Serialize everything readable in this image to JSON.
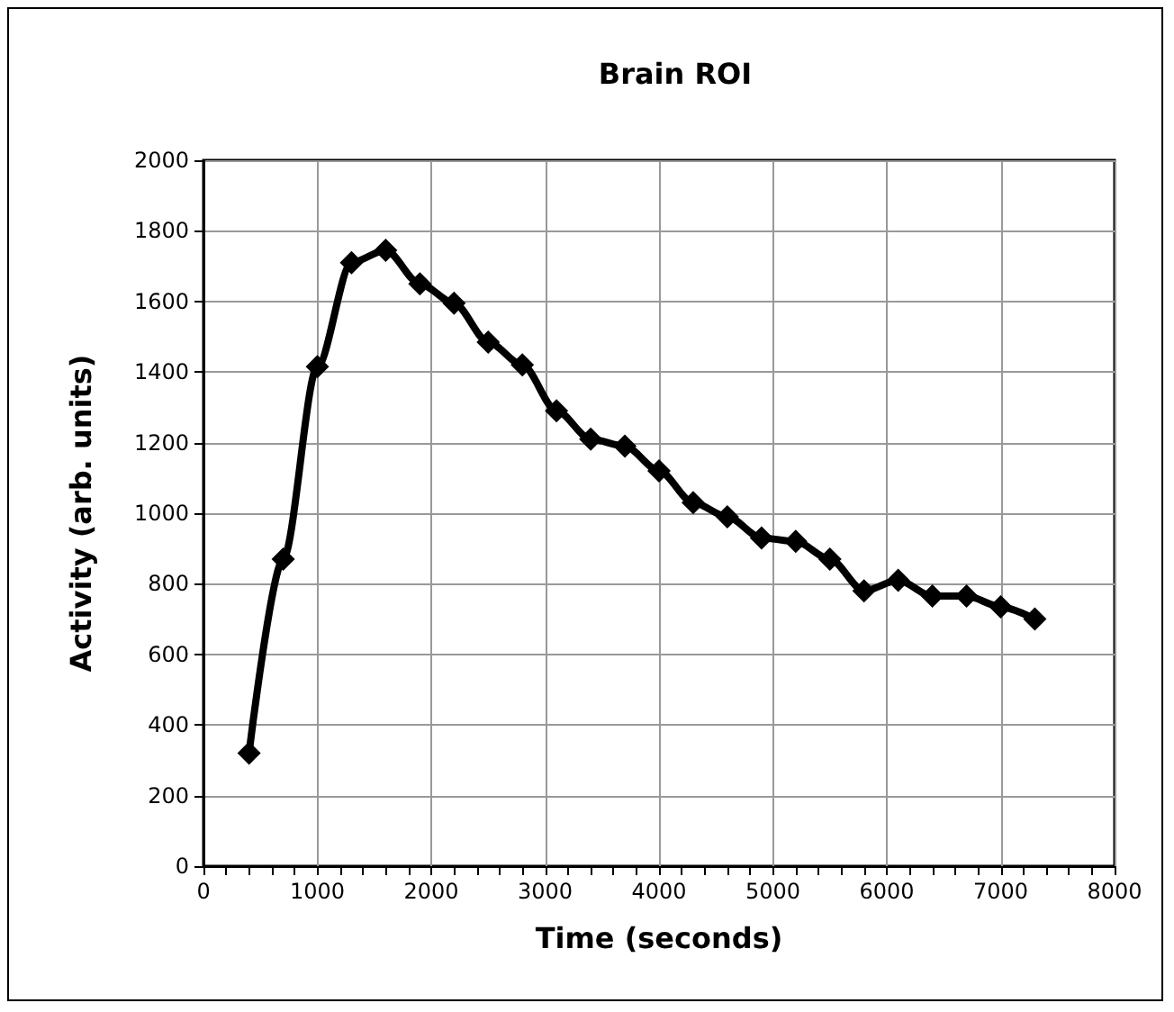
{
  "chart_data": {
    "type": "line",
    "title": "Brain ROI",
    "xlabel": "Time (seconds)",
    "ylabel": "Activity (arb. units)",
    "x": [
      400,
      700,
      1000,
      1300,
      1600,
      1900,
      2200,
      2500,
      2800,
      3100,
      3400,
      3700,
      4000,
      4300,
      4600,
      4900,
      5200,
      5500,
      5800,
      6100,
      6400,
      6700,
      7000,
      7300
    ],
    "series": [
      {
        "color": "#000000",
        "values": [
          320,
          870,
          1415,
          1710,
          1745,
          1650,
          1595,
          1485,
          1420,
          1290,
          1210,
          1190,
          1120,
          1030,
          990,
          930,
          920,
          870,
          780,
          810,
          765,
          765,
          735,
          700
        ]
      }
    ],
    "xlim": [
      0,
      8000
    ],
    "xticks": [
      0,
      1000,
      2000,
      3000,
      4000,
      5000,
      6000,
      7000,
      8000
    ],
    "ylim": [
      0,
      2000
    ],
    "yticks": [
      0,
      200,
      400,
      600,
      800,
      1000,
      1200,
      1400,
      1600,
      1800,
      2000
    ],
    "grid": true,
    "marker": "diamond",
    "line_style": "solid"
  }
}
